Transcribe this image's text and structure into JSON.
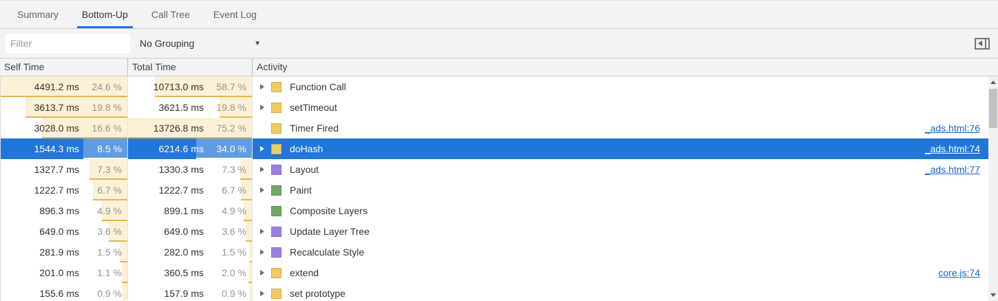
{
  "tabs": [
    {
      "label": "Summary",
      "active": false
    },
    {
      "label": "Bottom-Up",
      "active": true
    },
    {
      "label": "Call Tree",
      "active": false
    },
    {
      "label": "Event Log",
      "active": false
    }
  ],
  "toolbar": {
    "filter_placeholder": "Filter",
    "grouping_value": "No Grouping",
    "caret": "▼"
  },
  "grid": {
    "columns": [
      "Self Time",
      "Total Time",
      "Activity"
    ],
    "self_max_pct": 24.6,
    "total_max_pct": 75.2,
    "rows": [
      {
        "self": "4491.2 ms",
        "self_pct": "24.6 %",
        "self_pct_num": 24.6,
        "total": "10713.0 ms",
        "total_pct": "58.7 %",
        "total_pct_num": 58.7,
        "activity": "Function Call",
        "category": "scripting",
        "expandable": true,
        "selected": false,
        "link": ""
      },
      {
        "self": "3613.7 ms",
        "self_pct": "19.8 %",
        "self_pct_num": 19.8,
        "total": "3621.5 ms",
        "total_pct": "19.8 %",
        "total_pct_num": 19.8,
        "activity": "setTimeout",
        "category": "scripting",
        "expandable": true,
        "selected": false,
        "link": ""
      },
      {
        "self": "3028.0 ms",
        "self_pct": "16.6 %",
        "self_pct_num": 16.6,
        "total": "13726.8 ms",
        "total_pct": "75.2 %",
        "total_pct_num": 75.2,
        "activity": "Timer Fired",
        "category": "scripting",
        "expandable": false,
        "selected": false,
        "link": "_ads.html:76"
      },
      {
        "self": "1544.3 ms",
        "self_pct": "8.5 %",
        "self_pct_num": 8.5,
        "total": "6214.6 ms",
        "total_pct": "34.0 %",
        "total_pct_num": 34.0,
        "activity": "doHash",
        "category": "scripting",
        "expandable": true,
        "selected": true,
        "link": "_ads.html:74"
      },
      {
        "self": "1327.7 ms",
        "self_pct": "7.3 %",
        "self_pct_num": 7.3,
        "total": "1330.3 ms",
        "total_pct": "7.3 %",
        "total_pct_num": 7.3,
        "activity": "Layout",
        "category": "rendering",
        "expandable": true,
        "selected": false,
        "link": "_ads.html:77"
      },
      {
        "self": "1222.7 ms",
        "self_pct": "6.7 %",
        "self_pct_num": 6.7,
        "total": "1222.7 ms",
        "total_pct": "6.7 %",
        "total_pct_num": 6.7,
        "activity": "Paint",
        "category": "painting",
        "expandable": true,
        "selected": false,
        "link": ""
      },
      {
        "self": "896.3 ms",
        "self_pct": "4.9 %",
        "self_pct_num": 4.9,
        "total": "899.1 ms",
        "total_pct": "4.9 %",
        "total_pct_num": 4.9,
        "activity": "Composite Layers",
        "category": "painting",
        "expandable": false,
        "selected": false,
        "link": ""
      },
      {
        "self": "649.0 ms",
        "self_pct": "3.6 %",
        "self_pct_num": 3.6,
        "total": "649.0 ms",
        "total_pct": "3.6 %",
        "total_pct_num": 3.6,
        "activity": "Update Layer Tree",
        "category": "rendering",
        "expandable": true,
        "selected": false,
        "link": ""
      },
      {
        "self": "281.9 ms",
        "self_pct": "1.5 %",
        "self_pct_num": 1.5,
        "total": "282.0 ms",
        "total_pct": "1.5 %",
        "total_pct_num": 1.5,
        "activity": "Recalculate Style",
        "category": "rendering",
        "expandable": true,
        "selected": false,
        "link": ""
      },
      {
        "self": "201.0 ms",
        "self_pct": "1.1 %",
        "self_pct_num": 1.1,
        "total": "360.5 ms",
        "total_pct": "2.0 %",
        "total_pct_num": 2.0,
        "activity": "extend",
        "category": "scripting",
        "expandable": true,
        "selected": false,
        "link": "core.js:74"
      },
      {
        "self": "155.6 ms",
        "self_pct": "0.9 %",
        "self_pct_num": 0.9,
        "total": "157.9 ms",
        "total_pct": "0.9 %",
        "total_pct_num": 0.9,
        "activity": "set prototype",
        "category": "scripting",
        "expandable": true,
        "selected": false,
        "link": ""
      }
    ]
  },
  "colors": {
    "accent": "#1a73e8",
    "selection": "#2276d9",
    "link": "#1a62d3",
    "bar_fill": "#fbf1d6",
    "bar_underline": "#e2b64e",
    "selected_bar_fill": "rgba(255,255,255,0.28)",
    "selected_bar_underline": "#ffffff",
    "scripting_fill": "#eecd60",
    "scripting_border": "#d3aa4a",
    "rendering_fill": "#9a80e4",
    "rendering_border": "#8a6fd1",
    "painting_fill": "#71a866",
    "painting_border": "#5d9355"
  }
}
